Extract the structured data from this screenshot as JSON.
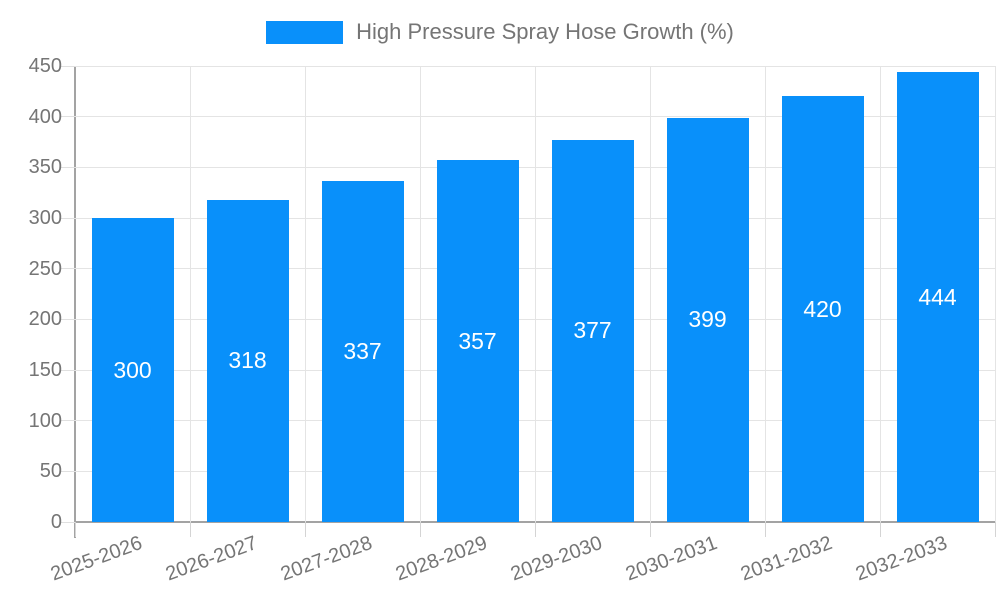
{
  "chart_data": {
    "type": "bar",
    "title": "High Pressure Spray Hose Growth (%)",
    "legend_label": "High Pressure Spray Hose Growth (%)",
    "categories": [
      "2025-2026",
      "2026-2027",
      "2027-2028",
      "2028-2029",
      "2029-2030",
      "2030-2031",
      "2031-2032",
      "2032-2033"
    ],
    "values": [
      300,
      318,
      337,
      357,
      377,
      399,
      420,
      444
    ],
    "xlabel": "",
    "ylabel": "",
    "ylim": [
      0,
      450
    ],
    "ytick_step": 50,
    "grid": true,
    "legend_position": "top-center",
    "colors": {
      "bar": "#0990fa",
      "value_label": "#ffffff",
      "axis_text": "#757575"
    }
  }
}
